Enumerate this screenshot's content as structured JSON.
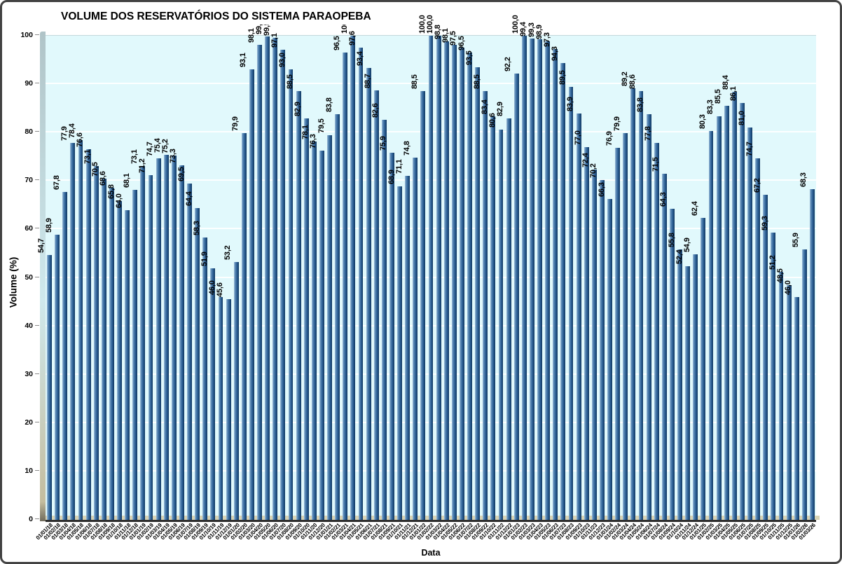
{
  "chart_data": {
    "type": "bar",
    "title": "VOLUME DOS RESERVATÓRIOS DO SISTEMA PARAOPEBA",
    "xlabel": "Data",
    "ylabel": "Volume (%)",
    "ylim": [
      0,
      100
    ],
    "yticks": [
      0,
      10,
      20,
      30,
      40,
      50,
      60,
      70,
      80,
      90,
      100
    ],
    "grid": true,
    "legend": false,
    "value_label_style": "rotated-90, bold, comma decimal, one place",
    "xtick_style": "rotated-45",
    "categories": [
      "01/01/18",
      "01/02/18",
      "01/03/18",
      "01/04/18",
      "01/05/18",
      "01/06/18",
      "01/07/18",
      "01/08/18",
      "01/09/18",
      "01/10/18",
      "01/11/18",
      "01/12/18",
      "01/01/19",
      "01/02/19",
      "01/03/19",
      "01/04/19",
      "01/05/19",
      "01/06/19",
      "01/07/19",
      "01/08/19",
      "01/09/19",
      "01/10/19",
      "01/11/19",
      "01/12/19",
      "01/01/20",
      "01/02/20",
      "01/03/20",
      "01/04/20",
      "01/05/20",
      "01/06/20",
      "01/07/20",
      "01/08/20",
      "01/09/20",
      "01/10/20",
      "01/11/20",
      "01/12/20",
      "01/01/21",
      "01/02/21",
      "01/03/21",
      "01/04/21",
      "01/05/21",
      "01/06/21",
      "01/07/21",
      "01/08/21",
      "01/09/21",
      "01/10/21",
      "01/11/21",
      "01/12/21",
      "01/01/22",
      "01/02/22",
      "01/03/22",
      "01/04/22",
      "01/05/22",
      "01/06/22",
      "01/07/22",
      "01/08/22",
      "01/09/22",
      "01/10/22",
      "01/11/22",
      "01/12/22",
      "01/01/23",
      "01/02/23",
      "01/03/23",
      "01/04/23",
      "01/05/23",
      "01/06/23",
      "01/07/23",
      "01/08/23",
      "01/09/23",
      "01/10/23",
      "01/11/23",
      "01/12/23",
      "01/01/24",
      "01/02/24",
      "01/03/24",
      "01/04/24",
      "01/05/24",
      "01/06/24",
      "01/07/24",
      "01/08/24",
      "01/09/24",
      "01/10/24",
      "01/11/24",
      "01/12/24",
      "01/01/25",
      "01/02/25",
      "01/03/25",
      "01/04/25",
      "01/05/25",
      "01/06/25",
      "01/07/25",
      "01/08/25",
      "01/09/25",
      "01/10/25",
      "01/11/25",
      "01/12/25",
      "01/01/26",
      "01/02/26",
      "01/03/26"
    ],
    "values": [
      54.7,
      58.9,
      67.8,
      77.9,
      78.4,
      76.6,
      73.1,
      70.5,
      68.6,
      65.8,
      64.0,
      68.1,
      73.1,
      71.2,
      74.7,
      75.4,
      75.2,
      73.3,
      69.5,
      64.4,
      58.3,
      51.9,
      46.0,
      45.6,
      53.2,
      79.9,
      93.1,
      98.1,
      99.8,
      99.5,
      97.1,
      93.0,
      88.5,
      82.9,
      78.1,
      76.3,
      79.5,
      83.8,
      96.5,
      100.0,
      97.6,
      93.4,
      88.7,
      82.6,
      75.9,
      68.9,
      71.1,
      74.8,
      88.5,
      100.0,
      100.0,
      98.8,
      98.1,
      97.5,
      96.5,
      93.5,
      88.5,
      83.4,
      80.6,
      82.9,
      92.2,
      100.0,
      99.4,
      99.3,
      98.9,
      97.3,
      94.3,
      89.5,
      83.9,
      77.0,
      72.4,
      70.2,
      66.3,
      76.9,
      79.9,
      89.2,
      88.6,
      83.8,
      77.8,
      71.5,
      64.3,
      55.8,
      52.4,
      54.9,
      62.4,
      80.3,
      83.3,
      85.5,
      88.4,
      86.1,
      81.0,
      74.7,
      67.2,
      59.3,
      51.2,
      48.5,
      46.0,
      55.9,
      68.3
    ],
    "colors": {
      "plot_bg": "#e1f9fc",
      "grid": "#ffffff",
      "floor": "#d9d4b5",
      "wall1": "#b0c4c8",
      "wall2": "#cfe9ed",
      "bar_light": "#aac7df",
      "bar_mid": "#4a7bab",
      "bar_dark": "#26598f",
      "bar_edge": "#17416c",
      "label": "#000000"
    }
  }
}
